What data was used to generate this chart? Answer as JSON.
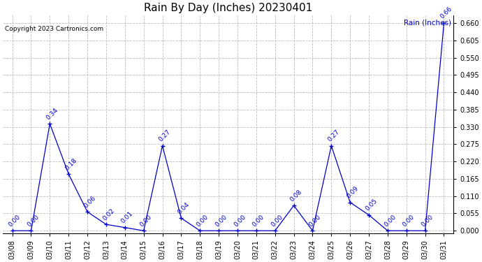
{
  "title": "Rain By Day (Inches) 20230401",
  "copyright": "Copyright 2023 Cartronics.com",
  "legend_label": "Rain (Inches)",
  "dates": [
    "03/08",
    "03/09",
    "03/10",
    "03/11",
    "03/12",
    "03/13",
    "03/14",
    "03/15",
    "03/16",
    "03/17",
    "03/18",
    "03/19",
    "03/20",
    "03/21",
    "03/22",
    "03/23",
    "03/24",
    "03/25",
    "03/26",
    "03/27",
    "03/28",
    "03/29",
    "03/30",
    "03/31"
  ],
  "values": [
    0.0,
    0.0,
    0.34,
    0.18,
    0.06,
    0.02,
    0.01,
    0.0,
    0.27,
    0.04,
    0.0,
    0.0,
    0.0,
    0.0,
    0.0,
    0.08,
    0.0,
    0.27,
    0.09,
    0.05,
    0.0,
    0.0,
    0.0,
    0.66
  ],
  "line_color": "#0000cc",
  "marker_color": "#0000cc",
  "background_color": "#ffffff",
  "grid_color": "#bbbbbb",
  "title_fontsize": 11,
  "copyright_fontsize": 6.5,
  "label_fontsize": 7,
  "annotation_fontsize": 6.5,
  "legend_fontsize": 7.5,
  "ylim_min": -0.008,
  "ylim_max": 0.685,
  "yticks": [
    0.0,
    0.055,
    0.11,
    0.165,
    0.22,
    0.275,
    0.33,
    0.385,
    0.44,
    0.495,
    0.55,
    0.605,
    0.66
  ]
}
